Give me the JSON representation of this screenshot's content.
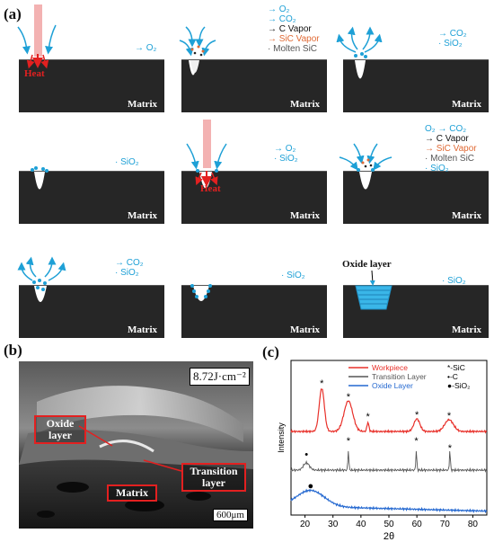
{
  "panel_labels": {
    "a": "(a)",
    "b": "(b)",
    "c": "(c)"
  },
  "panel_a": {
    "matrix_label": "Matrix",
    "heat_label": "Heat",
    "oxide_layer_label": "Oxide layer",
    "species": {
      "o2": "O₂",
      "co2": "CO₂",
      "sio2": "SiO₂",
      "c_vapor": "C Vapor",
      "sic_vapor": "SiC Vapor",
      "molten_sic": "Molten SiC",
      "o2_to_co2": "O₂ → CO₂"
    }
  },
  "panel_b": {
    "fluence_label": "8.72J·cm⁻²",
    "oxide_label": "Oxide layer",
    "transition_label": "Transition layer",
    "matrix_label": "Matrix",
    "scale_bar": "600μm"
  },
  "chart_data": {
    "type": "line",
    "xlabel": "2θ",
    "ylabel": "Intensity",
    "xlim": [
      15,
      85
    ],
    "x_ticks": [
      20,
      30,
      40,
      50,
      60,
      70,
      80
    ],
    "legend": [
      "Workpiece",
      "Transition Layer",
      "Oxide Layer"
    ],
    "marker_legend": [
      "*-SiC",
      "•-C",
      "●-SiO₂"
    ],
    "series": [
      {
        "name": "Workpiece",
        "color": "#e8302a",
        "sic_peaks_2theta": [
          26.0,
          35.5,
          42.5,
          60.0,
          71.5
        ]
      },
      {
        "name": "Transition Layer",
        "color": "#555555",
        "c_peak_2theta": [
          20.5
        ],
        "sic_peaks_2theta": [
          35.5,
          59.8,
          71.8
        ]
      },
      {
        "name": "Oxide Layer",
        "color": "#2468d0",
        "sio2_peak_2theta": [
          22.0
        ]
      }
    ]
  },
  "colors": {
    "cyan": "#1ea0d6",
    "red": "#e32020",
    "orange": "#e06a35",
    "laser": "#f3b2b2"
  }
}
